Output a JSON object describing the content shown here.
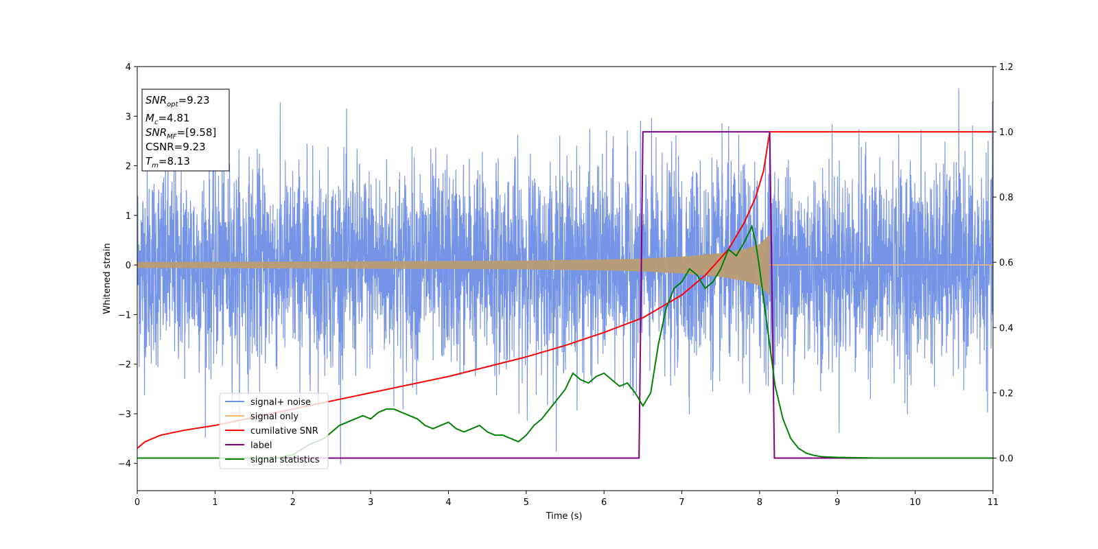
{
  "chart_data": {
    "type": "line",
    "xlabel": "Time (s)",
    "ylabel": "Whitened strain",
    "xlim": [
      0,
      11
    ],
    "ylim_left": [
      -4.55,
      4.0
    ],
    "ylim_right": [
      -0.1,
      1.2
    ],
    "x_ticks": [
      "0",
      "1",
      "2",
      "3",
      "4",
      "5",
      "6",
      "7",
      "8",
      "9",
      "10",
      "11"
    ],
    "y_ticks_left": [
      "4",
      "3",
      "2",
      "1",
      "0",
      "−1",
      "−2",
      "−3",
      "−4"
    ],
    "y_ticks_right": [
      "1.2",
      "1.0",
      "0.8",
      "0.6",
      "0.4",
      "0.2",
      "0.0"
    ],
    "info_box": {
      "snr_opt": "=9.23",
      "mc": "=4.81",
      "snr_mf": "=[9.58]",
      "csnr": "CSNR=9.23",
      "tm": "=8.13"
    },
    "legend": {
      "placement": "lower-left",
      "entries": [
        "signal+ noise",
        "signal only",
        "cumilative SNR",
        "label",
        "signal statistics"
      ]
    },
    "colors": {
      "noise": "#6f8ee6",
      "signal": "#f5b969",
      "signal_fill": "#b89b72",
      "csnr": "#ff0000",
      "label": "#800080",
      "stats": "#008000"
    },
    "series": [
      {
        "name": "signal+ noise",
        "axis": "left",
        "description_sigma": 1.0,
        "x_range": [
          0,
          11
        ]
      },
      {
        "name": "signal only",
        "axis": "left",
        "envelope": {
          "x": [
            0,
            1,
            2,
            3,
            4,
            5,
            6,
            6.5,
            7,
            7.5,
            7.8,
            8.0,
            8.13,
            8.14,
            11
          ],
          "amp": [
            0.06,
            0.065,
            0.07,
            0.075,
            0.08,
            0.09,
            0.11,
            0.13,
            0.17,
            0.24,
            0.32,
            0.42,
            0.62,
            0.0,
            0.0
          ]
        }
      },
      {
        "name": "cumilative SNR",
        "axis": "right",
        "x": [
          0,
          0.1,
          0.3,
          0.6,
          1.0,
          1.5,
          2.0,
          2.5,
          3.0,
          3.5,
          4.0,
          4.5,
          5.0,
          5.5,
          6.0,
          6.5,
          7.0,
          7.3,
          7.6,
          7.8,
          7.95,
          8.05,
          8.13,
          8.2,
          11
        ],
        "y": [
          0.03,
          0.05,
          0.07,
          0.085,
          0.1,
          0.125,
          0.15,
          0.175,
          0.2,
          0.225,
          0.25,
          0.28,
          0.31,
          0.345,
          0.385,
          0.43,
          0.5,
          0.56,
          0.64,
          0.72,
          0.8,
          0.88,
          1.0,
          1.0,
          1.0
        ]
      },
      {
        "name": "label",
        "axis": "right",
        "x": [
          0,
          6.45,
          6.5,
          8.13,
          8.19,
          11
        ],
        "y": [
          0.0,
          0.0,
          1.0,
          1.0,
          0.0,
          0.0
        ]
      },
      {
        "name": "signal statistics",
        "axis": "right",
        "x": [
          0,
          1.0,
          1.5,
          1.8,
          2.0,
          2.2,
          2.4,
          2.5,
          2.6,
          2.7,
          2.8,
          2.9,
          3.0,
          3.1,
          3.2,
          3.3,
          3.4,
          3.5,
          3.6,
          3.7,
          3.8,
          3.9,
          4.0,
          4.1,
          4.2,
          4.3,
          4.4,
          4.5,
          4.6,
          4.7,
          4.8,
          4.9,
          5.0,
          5.1,
          5.2,
          5.3,
          5.4,
          5.5,
          5.6,
          5.7,
          5.8,
          5.9,
          6.0,
          6.1,
          6.2,
          6.3,
          6.4,
          6.5,
          6.6,
          6.7,
          6.8,
          6.9,
          7.0,
          7.1,
          7.2,
          7.3,
          7.4,
          7.5,
          7.6,
          7.7,
          7.8,
          7.9,
          7.95,
          8.0,
          8.1,
          8.2,
          8.3,
          8.4,
          8.5,
          8.6,
          8.7,
          8.8,
          9.0,
          9.5,
          10,
          11
        ],
        "y": [
          0.0,
          0.0,
          0.0,
          0.0,
          0.01,
          0.04,
          0.06,
          0.08,
          0.1,
          0.11,
          0.12,
          0.13,
          0.12,
          0.14,
          0.15,
          0.15,
          0.14,
          0.13,
          0.12,
          0.1,
          0.09,
          0.1,
          0.11,
          0.09,
          0.08,
          0.09,
          0.1,
          0.08,
          0.07,
          0.07,
          0.06,
          0.05,
          0.07,
          0.1,
          0.12,
          0.15,
          0.18,
          0.21,
          0.26,
          0.24,
          0.23,
          0.25,
          0.26,
          0.24,
          0.22,
          0.23,
          0.2,
          0.16,
          0.2,
          0.35,
          0.46,
          0.52,
          0.54,
          0.58,
          0.56,
          0.52,
          0.54,
          0.58,
          0.64,
          0.62,
          0.66,
          0.71,
          0.66,
          0.58,
          0.4,
          0.22,
          0.12,
          0.06,
          0.03,
          0.015,
          0.008,
          0.004,
          0.002,
          0.0,
          0.0,
          0.0
        ]
      }
    ]
  }
}
